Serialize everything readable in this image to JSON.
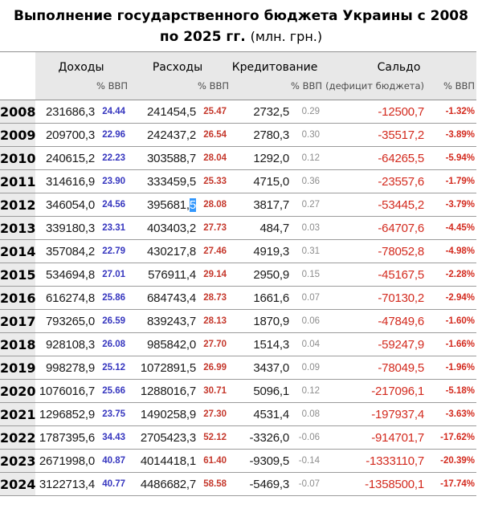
{
  "title": {
    "line1": "Выполнение государственного бюджета Украины с 2008",
    "line2_bold": "по 2025 гг.",
    "line2_unit": "(млн. грн.)"
  },
  "colors": {
    "income_pct": "#3636bf",
    "expense_pct": "#c5372b",
    "credit_pct": "#8d8d8d",
    "saldo": "#d32a1e",
    "header_bg": "#e8e8e8",
    "year_bg": "#ebebeb",
    "border": "#8f8f8f",
    "row_border": "#9b9b9b",
    "selection_bg": "#3297fd",
    "selection_text": "#ffffff"
  },
  "table": {
    "column_groups": [
      {
        "label": "Доходы",
        "sub": "% ВВП"
      },
      {
        "label": "Расходы",
        "sub": "% ВВП"
      },
      {
        "label": "Кредитование",
        "sub": "% ВВП"
      },
      {
        "label": "Сальдо",
        "sub_left": "(дефицит бюджета)",
        "sub": "% ВВП"
      }
    ],
    "selection_note": {
      "row_year": "2012",
      "column": "expense",
      "selected_text": "5"
    },
    "rows": [
      {
        "year": "2008",
        "income": "231686,3",
        "income_pct": "24.44",
        "expense": "241454,5",
        "expense_pct": "25.47",
        "credit": "2732,5",
        "credit_pct": "0.29",
        "saldo": "-12500,7",
        "saldo_pct": "-1.32%"
      },
      {
        "year": "2009",
        "income": "209700,3",
        "income_pct": "22.96",
        "expense": "242437,2",
        "expense_pct": "26.54",
        "credit": "2780,3",
        "credit_pct": "0.30",
        "saldo": "-35517,2",
        "saldo_pct": "-3.89%"
      },
      {
        "year": "2010",
        "income": "240615,2",
        "income_pct": "22.23",
        "expense": "303588,7",
        "expense_pct": "28.04",
        "credit": "1292,0",
        "credit_pct": "0.12",
        "saldo": "-64265,5",
        "saldo_pct": "-5.94%"
      },
      {
        "year": "2011",
        "income": "314616,9",
        "income_pct": "23.90",
        "expense": "333459,5",
        "expense_pct": "25.33",
        "credit": "4715,0",
        "credit_pct": "0.36",
        "saldo": "-23557,6",
        "saldo_pct": "-1.79%"
      },
      {
        "year": "2012",
        "income": "346054,0",
        "income_pct": "24.56",
        "expense": "395681,5",
        "expense_pct": "28.08",
        "credit": "3817,7",
        "credit_pct": "0.27",
        "saldo": "-53445,2",
        "saldo_pct": "-3.79%",
        "expense_selected_tail": "5"
      },
      {
        "year": "2013",
        "income": "339180,3",
        "income_pct": "23.31",
        "expense": "403403,2",
        "expense_pct": "27.73",
        "credit": "484,7",
        "credit_pct": "0.03",
        "saldo": "-64707,6",
        "saldo_pct": "-4.45%"
      },
      {
        "year": "2014",
        "income": "357084,2",
        "income_pct": "22.79",
        "expense": "430217,8",
        "expense_pct": "27.46",
        "credit": "4919,3",
        "credit_pct": "0.31",
        "saldo": "-78052,8",
        "saldo_pct": "-4.98%"
      },
      {
        "year": "2015",
        "income": "534694,8",
        "income_pct": "27.01",
        "expense": "576911,4",
        "expense_pct": "29.14",
        "credit": "2950,9",
        "credit_pct": "0.15",
        "saldo": "-45167,5",
        "saldo_pct": "-2.28%"
      },
      {
        "year": "2016",
        "income": "616274,8",
        "income_pct": "25.86",
        "expense": "684743,4",
        "expense_pct": "28.73",
        "credit": "1661,6",
        "credit_pct": "0.07",
        "saldo": "-70130,2",
        "saldo_pct": "-2.94%"
      },
      {
        "year": "2017",
        "income": "793265,0",
        "income_pct": "26.59",
        "expense": "839243,7",
        "expense_pct": "28.13",
        "credit": "1870,9",
        "credit_pct": "0.06",
        "saldo": "-47849,6",
        "saldo_pct": "-1.60%"
      },
      {
        "year": "2018",
        "income": "928108,3",
        "income_pct": "26.08",
        "expense": "985842,0",
        "expense_pct": "27.70",
        "credit": "1514,3",
        "credit_pct": "0.04",
        "saldo": "-59247,9",
        "saldo_pct": "-1.66%"
      },
      {
        "year": "2019",
        "income": "998278,9",
        "income_pct": "25.12",
        "expense": "1072891,5",
        "expense_pct": "26.99",
        "credit": "3437,0",
        "credit_pct": "0.09",
        "saldo": "-78049,5",
        "saldo_pct": "-1.96%"
      },
      {
        "year": "2020",
        "income": "1076016,7",
        "income_pct": "25.66",
        "expense": "1288016,7",
        "expense_pct": "30.71",
        "credit": "5096,1",
        "credit_pct": "0.12",
        "saldo": "-217096,1",
        "saldo_pct": "-5.18%"
      },
      {
        "year": "2021",
        "income": "1296852,9",
        "income_pct": "23.75",
        "expense": "1490258,9",
        "expense_pct": "27.30",
        "credit": "4531,4",
        "credit_pct": "0.08",
        "saldo": "-197937,4",
        "saldo_pct": "-3.63%"
      },
      {
        "year": "2022",
        "income": "1787395,6",
        "income_pct": "34.43",
        "expense": "2705423,3",
        "expense_pct": "52.12",
        "credit": "-3326,0",
        "credit_pct": "-0.06",
        "saldo": "-914701,7",
        "saldo_pct": "-17.62%"
      },
      {
        "year": "2023",
        "income": "2671998,0",
        "income_pct": "40.87",
        "expense": "4014418,1",
        "expense_pct": "61.40",
        "credit": "-9309,5",
        "credit_pct": "-0.14",
        "saldo": "-1333110,7",
        "saldo_pct": "-20.39%"
      },
      {
        "year": "2024",
        "income": "3122713,4",
        "income_pct": "40.77",
        "expense": "4486682,7",
        "expense_pct": "58.58",
        "credit": "-5469,3",
        "credit_pct": "-0.07",
        "saldo": "-1358500,1",
        "saldo_pct": "-17.74%"
      }
    ]
  }
}
